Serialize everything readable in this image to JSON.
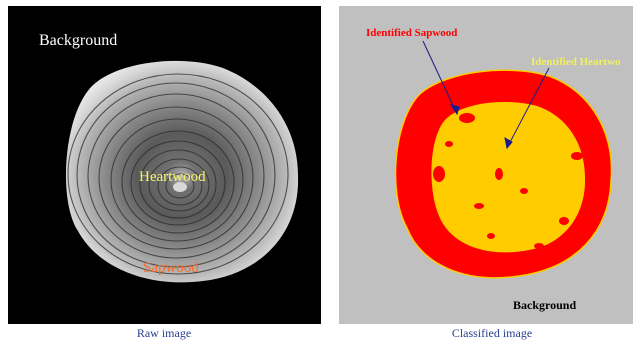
{
  "left_panel": {
    "background_label": "Background",
    "heartwood_label": "Heartwood",
    "sapwood_label": "Sapwood",
    "caption": "Raw image",
    "colors": {
      "background": "#000000",
      "heartwood_label": "#f5f56a",
      "sapwood_label": "#ff6a2a"
    }
  },
  "right_panel": {
    "sapwood_label": "Identified Sapwood",
    "heartwood_label": "Identified Heartwo",
    "background_label": "Background",
    "caption": "Classified image",
    "colors": {
      "background": "#c0c0c0",
      "sapwood": "#ff0000",
      "heartwood": "#ffcc00",
      "sapwood_label": "#ff0000",
      "heartwood_label": "#f0f060",
      "arrow": "#1a1a8c"
    }
  }
}
